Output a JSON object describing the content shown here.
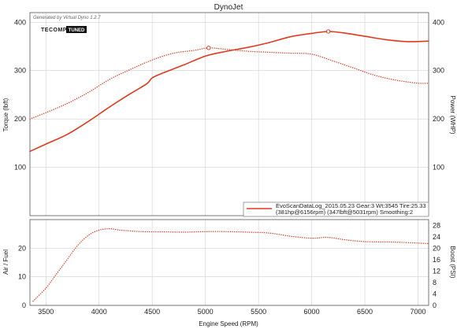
{
  "header": {
    "title": "DynoJet",
    "generated_note": "Generated by Virtual Dyno 1.2.7",
    "brand_left": "TECOMP",
    "brand_right": "TUNED"
  },
  "legend": {
    "line1": "EvoScanDataLog_2015.05.23 Gear:3 Wt:3545 Tire:25.33",
    "line2": "(381hp@6156rpm) (347lbft@5031rpm) Smoothing:2"
  },
  "colors": {
    "series": "#e03a1e",
    "grid": "#d0d0d0",
    "axis": "#555555"
  },
  "chart_data": [
    {
      "type": "line",
      "title": "DynoJet",
      "xlabel": "Engine Speed (RPM)",
      "ylabel": "Torque (lbft)",
      "y2label": "Power (WHP)",
      "xlim": [
        3350,
        7100
      ],
      "ylim": [
        0,
        420
      ],
      "y2lim": [
        0,
        420
      ],
      "x_ticks": [
        3500,
        4000,
        4500,
        5000,
        5500,
        6000,
        6500,
        7000
      ],
      "y_ticks": [
        100,
        200,
        300,
        400
      ],
      "y2_ticks": [
        100,
        200,
        300,
        400
      ],
      "grid": true,
      "legend_position": "bottom-right",
      "series": [
        {
          "name": "Power (WHP)",
          "axis": "right",
          "style": "solid",
          "x": [
            3350,
            3500,
            3700,
            3900,
            4100,
            4300,
            4450,
            4500,
            4600,
            4800,
            5000,
            5200,
            5400,
            5600,
            5800,
            6000,
            6156,
            6300,
            6500,
            6700,
            6900,
            7100
          ],
          "y": [
            133,
            148,
            168,
            195,
            225,
            253,
            273,
            285,
            295,
            312,
            330,
            340,
            348,
            358,
            370,
            377,
            381,
            378,
            371,
            364,
            360,
            361
          ],
          "peak": {
            "x": 6156,
            "y": 381
          }
        },
        {
          "name": "Torque (lbft)",
          "axis": "left",
          "style": "dotted",
          "x": [
            3350,
            3500,
            3700,
            3900,
            4100,
            4300,
            4500,
            4700,
            4900,
            5031,
            5200,
            5400,
            5600,
            5800,
            6000,
            6200,
            6400,
            6600,
            6800,
            7000,
            7100
          ],
          "y": [
            200,
            213,
            232,
            255,
            282,
            303,
            322,
            336,
            342,
            347,
            344,
            340,
            338,
            336,
            334,
            320,
            305,
            290,
            280,
            274,
            274
          ],
          "peak": {
            "x": 5031,
            "y": 347
          }
        }
      ]
    },
    {
      "type": "line",
      "ylabel": "Air / Fuel",
      "y2label": "Boost (PSI)",
      "xlim": [
        3350,
        7100
      ],
      "ylim": [
        0,
        30
      ],
      "y2lim": [
        0,
        30
      ],
      "x_ticks": [
        3500,
        4000,
        4500,
        5000,
        5500,
        6000,
        6500,
        7000
      ],
      "y_ticks": [
        0,
        10,
        20
      ],
      "y2_ticks": [
        0,
        4,
        8,
        12,
        16,
        20,
        24,
        28
      ],
      "grid": true,
      "series": [
        {
          "name": "Boost (PSI)",
          "axis": "right",
          "style": "dotted",
          "x": [
            3380,
            3500,
            3600,
            3700,
            3800,
            3900,
            4000,
            4100,
            4200,
            4400,
            4600,
            4800,
            5000,
            5200,
            5400,
            5600,
            5800,
            6000,
            6150,
            6300,
            6500,
            6800,
            7100
          ],
          "y": [
            1.5,
            6,
            11,
            16,
            21,
            24.5,
            26.3,
            26.8,
            26.3,
            25.8,
            25.7,
            25.6,
            25.8,
            25.8,
            25.6,
            25.3,
            24.2,
            23.5,
            23.8,
            23,
            22.3,
            22.1,
            21.6
          ]
        }
      ]
    }
  ]
}
